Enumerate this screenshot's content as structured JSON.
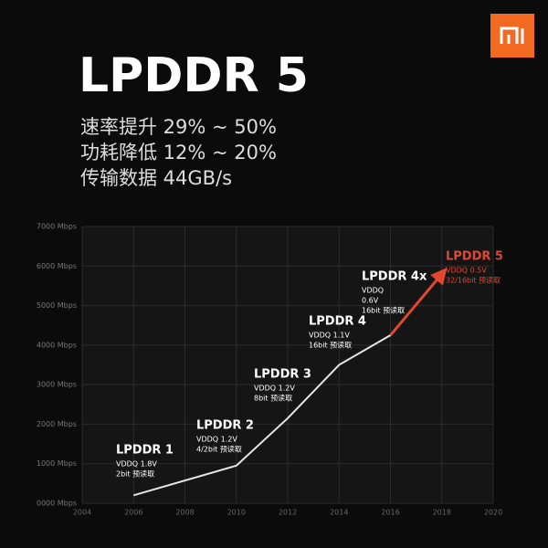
{
  "header": {
    "title": "LPDDR 5",
    "lines": [
      "速率提升 29% ~ 50%",
      "功耗降低 12% ~ 20%",
      "传输数据 44GB/s"
    ]
  },
  "chart_data": {
    "type": "line",
    "series": [
      {
        "color": "#e6e6e6",
        "x": [
          2006,
          2010,
          2012,
          2014,
          2016
        ],
        "values": [
          200,
          950,
          2150,
          3500,
          4250
        ]
      },
      {
        "color": "#e2482f",
        "x": [
          2016,
          2018
        ],
        "values": [
          4250,
          5800
        ]
      }
    ],
    "xlim": [
      2004,
      2020
    ],
    "xticks": [
      2004,
      2006,
      2008,
      2010,
      2012,
      2014,
      2016,
      2018,
      2020
    ],
    "ylim": [
      0,
      7000
    ],
    "yticks": [
      {
        "value": 0,
        "label": "0000 Mbps"
      },
      {
        "value": 1000,
        "label": "1000 Mbps"
      },
      {
        "value": 2000,
        "label": "2000 Mbps"
      },
      {
        "value": 3000,
        "label": "3000 Mbps"
      },
      {
        "value": 4000,
        "label": "4000 Mbps"
      },
      {
        "value": 5000,
        "label": "5000 Mbps"
      },
      {
        "value": 6000,
        "label": "6000 Mbps"
      },
      {
        "value": 7000,
        "label": "7000 Mbps"
      }
    ],
    "grid": true,
    "annotations": [
      {
        "title": "LPDDR 1",
        "lines": [
          "VDDQ 1.8V",
          "2bit 预读取"
        ],
        "color": "#ffffff"
      },
      {
        "title": "LPDDR 2",
        "lines": [
          "VDDQ 1.2V",
          "4/2bit 预读取"
        ],
        "color": "#ffffff"
      },
      {
        "title": "LPDDR 3",
        "lines": [
          "VDDQ 1.2V",
          "8bit 预读取"
        ],
        "color": "#ffffff"
      },
      {
        "title": "LPDDR 4",
        "lines": [
          "VDDQ 1.1V",
          "16bit 预读取"
        ],
        "color": "#ffffff"
      },
      {
        "title": "LPDDR 4x",
        "lines": [
          "VDDQ",
          "0.6V",
          "16bit 预读取"
        ],
        "color": "#ffffff"
      },
      {
        "title": "LPDDR 5",
        "lines": [
          "VDDQ 0.5V",
          "32/16bit 预读取"
        ],
        "color": "#e2482f"
      }
    ]
  }
}
